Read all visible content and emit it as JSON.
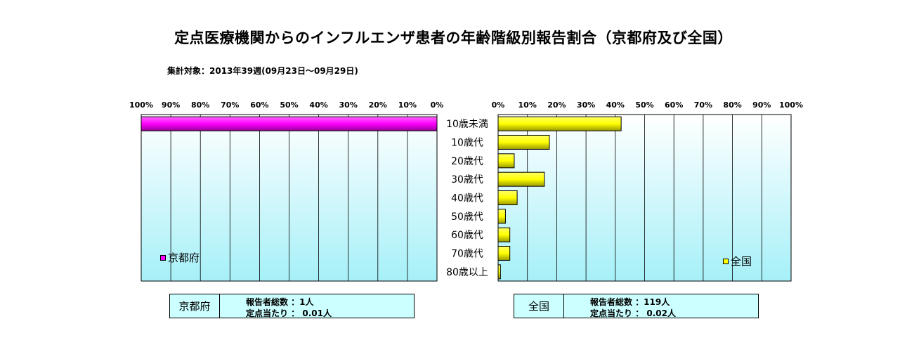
{
  "title": "定点医療機関からのインフルエンザ患者の年齢階級別報告割合（京都府及び全国）",
  "subtitle": "集計対象：2013年39週(09月23日～09月29日)",
  "chart_data": {
    "type": "bar",
    "orientation": "horizontal",
    "categories": [
      "10歳未満",
      "10歳代",
      "20歳代",
      "30歳代",
      "40歳代",
      "50歳代",
      "60歳代",
      "70歳代",
      "80歳以上"
    ],
    "panels": [
      {
        "name": "京都府",
        "color": "#ff00ff",
        "direction": "right-to-left",
        "tick_labels": [
          "100%",
          "90%",
          "80%",
          "70%",
          "60%",
          "50%",
          "40%",
          "30%",
          "20%",
          "10%",
          "0%"
        ],
        "xlim": [
          0,
          100
        ],
        "values": [
          100,
          0,
          0,
          0,
          0,
          0,
          0,
          0,
          0
        ],
        "legend_position": "bottom-left"
      },
      {
        "name": "全国",
        "color": "#ffff00",
        "direction": "left-to-right",
        "tick_labels": [
          "0%",
          "10%",
          "20%",
          "30%",
          "40%",
          "50%",
          "60%",
          "70%",
          "80%",
          "90%",
          "100%"
        ],
        "xlim": [
          0,
          100
        ],
        "values": [
          42,
          17.5,
          5.5,
          15.8,
          6.5,
          2.5,
          4,
          4,
          0.8
        ],
        "legend_position": "bottom-right"
      }
    ],
    "grid": true
  },
  "summary": {
    "kyoto": {
      "name": "京都府",
      "line1": "報告者総数 ：1人",
      "line2": "定点当たり ： 0.01人"
    },
    "national": {
      "name": "全国",
      "line1": "報告者総数 ：119人",
      "line2": "定点当たり ： 0.02人"
    }
  },
  "colors": {
    "plot_top": "#ffffff",
    "plot_bottom": "#a6f0f8",
    "kyoto_bar": "#ff00ff",
    "national_bar": "#ffff00"
  }
}
